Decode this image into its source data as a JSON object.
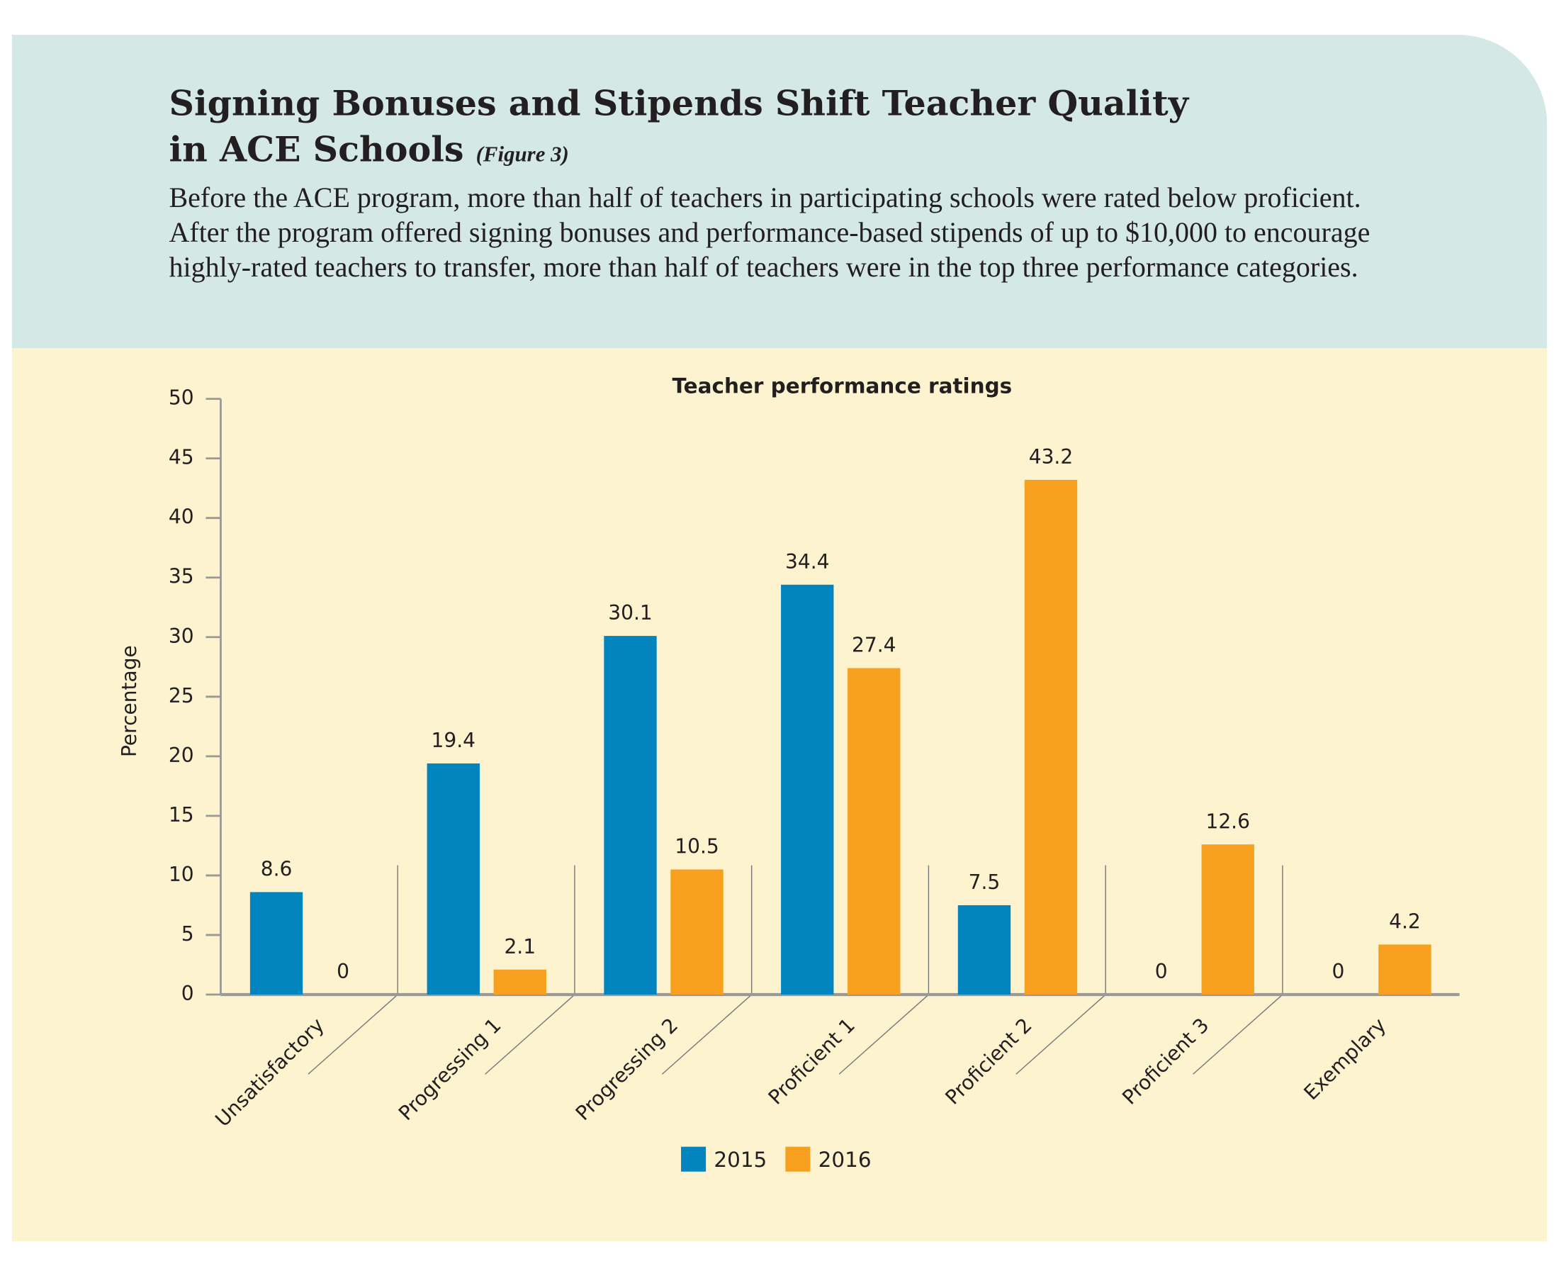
{
  "header": {
    "title": "Signing Bonuses and Stipends Shift Teacher Quality in ACE Schools",
    "figure_label": "(Figure 3)",
    "description": "Before the ACE program, more than half of teachers in participating schools were rated below proficient. After the program offered signing bonuses and performance-based stipends of up to $10,000 to encourage highly-rated teachers to transfer, more than half of teachers were in the top three performance categories."
  },
  "chart_data": {
    "type": "bar",
    "title": "Teacher performance ratings",
    "ylabel": "Percentage",
    "categories": [
      "Unsatisfactory",
      "Progressing 1",
      "Progressing 2",
      "Proficient 1",
      "Proficient 2",
      "Proficient 3",
      "Exemplary"
    ],
    "series": [
      {
        "name": "2015",
        "color": "#0284bf",
        "values": [
          8.6,
          19.4,
          30.1,
          34.4,
          7.5,
          0,
          0
        ]
      },
      {
        "name": "2016",
        "color": "#f7a020",
        "values": [
          0,
          2.1,
          10.5,
          27.4,
          43.2,
          12.6,
          4.2
        ]
      }
    ],
    "ylim": [
      0,
      50
    ],
    "yticks": [
      0,
      5,
      10,
      15,
      20,
      25,
      30,
      35,
      40,
      45,
      50
    ],
    "grid": false,
    "legend": "bottom"
  }
}
